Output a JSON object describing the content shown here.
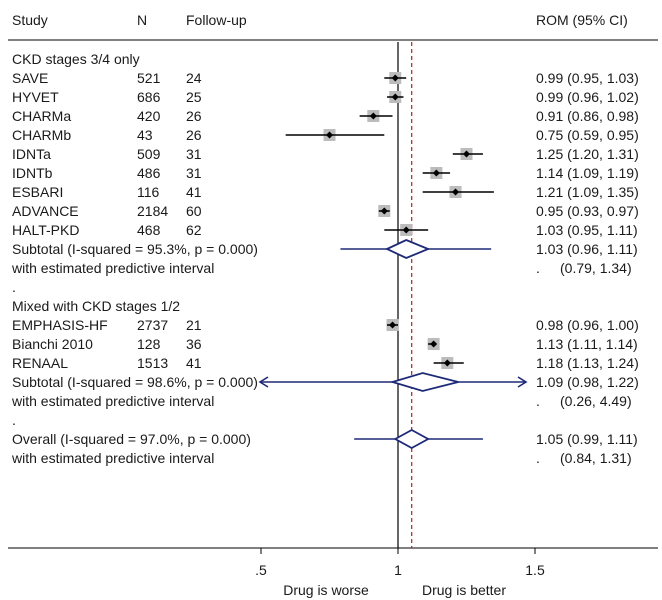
{
  "chart_data": {
    "type": "forest",
    "title": "",
    "header": {
      "study": "Study",
      "n": "N",
      "follow_up": "Follow-up",
      "effect": "ROM (95% CI)"
    },
    "x_axis": {
      "ticks": [
        0.5,
        1,
        1.5
      ],
      "tick_labels": [
        ".5",
        "1",
        "1.5"
      ],
      "xlim": [
        0.0,
        1.9
      ],
      "label_left": "Drug is worse",
      "label_right": "Drug is better"
    },
    "null_line": 1,
    "overall_line": 1.05,
    "colors": {
      "ci_line": "#000000",
      "point": "#000000",
      "box": "#bcbcbc",
      "diamond": "#1e2a78",
      "overall_line": "#b0202a"
    },
    "rows": [
      {
        "kind": "group",
        "label": "CKD stages 3/4 only"
      },
      {
        "kind": "study",
        "label": "SAVE",
        "n": "521",
        "follow": "24",
        "est": 0.99,
        "lo": 0.95,
        "hi": 1.03,
        "ci_text": "0.99 (0.95, 1.03)"
      },
      {
        "kind": "study",
        "label": "HYVET",
        "n": "686",
        "follow": "25",
        "est": 0.99,
        "lo": 0.96,
        "hi": 1.02,
        "ci_text": "0.99 (0.96, 1.02)"
      },
      {
        "kind": "study",
        "label": "CHARMa",
        "n": "420",
        "follow": "26",
        "est": 0.91,
        "lo": 0.86,
        "hi": 0.98,
        "ci_text": "0.91 (0.86, 0.98)"
      },
      {
        "kind": "study",
        "label": "CHARMb",
        "n": "43",
        "follow": "26",
        "est": 0.75,
        "lo": 0.59,
        "hi": 0.95,
        "ci_text": "0.75 (0.59, 0.95)"
      },
      {
        "kind": "study",
        "label": "IDNTa",
        "n": "509",
        "follow": "31",
        "est": 1.25,
        "lo": 1.2,
        "hi": 1.31,
        "ci_text": "1.25 (1.20, 1.31)"
      },
      {
        "kind": "study",
        "label": "IDNTb",
        "n": "486",
        "follow": "31",
        "est": 1.14,
        "lo": 1.09,
        "hi": 1.19,
        "ci_text": "1.14 (1.09, 1.19)"
      },
      {
        "kind": "study",
        "label": "ESBARI",
        "n": "116",
        "follow": "41",
        "est": 1.21,
        "lo": 1.09,
        "hi": 1.35,
        "ci_text": "1.21 (1.09, 1.35)"
      },
      {
        "kind": "study",
        "label": "ADVANCE",
        "n": "2184",
        "follow": "60",
        "est": 0.95,
        "lo": 0.93,
        "hi": 0.97,
        "ci_text": "0.95 (0.93, 0.97)"
      },
      {
        "kind": "study",
        "label": "HALT-PKD",
        "n": "468",
        "follow": "62",
        "est": 1.03,
        "lo": 0.95,
        "hi": 1.11,
        "ci_text": "1.03 (0.95, 1.11)"
      },
      {
        "kind": "subtotal",
        "label": "Subtotal  (I-squared = 95.3%, p = 0.000)",
        "est": 1.03,
        "lo": 0.96,
        "hi": 1.11,
        "pi_lo": 0.79,
        "pi_hi": 1.34,
        "ci_text": "1.03 (0.96, 1.11)"
      },
      {
        "kind": "pi",
        "label": "with estimated predictive interval",
        "dot": ".",
        "ci_text": "(0.79, 1.34)"
      },
      {
        "kind": "sep",
        "label": "."
      },
      {
        "kind": "group",
        "label": "Mixed with CKD stages 1/2"
      },
      {
        "kind": "study",
        "label": "EMPHASIS-HF",
        "n": "2737",
        "follow": "21",
        "est": 0.98,
        "lo": 0.96,
        "hi": 1.0,
        "ci_text": "0.98 (0.96, 1.00)"
      },
      {
        "kind": "study",
        "label": "Bianchi 2010",
        "n": "128",
        "follow": "36",
        "est": 1.13,
        "lo": 1.11,
        "hi": 1.14,
        "ci_text": "1.13 (1.11, 1.14)"
      },
      {
        "kind": "study",
        "label": "RENAAL",
        "n": "1513",
        "follow": "41",
        "est": 1.18,
        "lo": 1.13,
        "hi": 1.24,
        "ci_text": "1.18 (1.13, 1.24)"
      },
      {
        "kind": "subtotal",
        "label": "Subtotal  (I-squared = 98.6%, p = 0.000)",
        "est": 1.09,
        "lo": 0.98,
        "hi": 1.22,
        "pi_lo": 0.26,
        "pi_hi": 4.49,
        "ci_text": "1.09 (0.98, 1.22)"
      },
      {
        "kind": "pi",
        "label": "with estimated predictive interval",
        "dot": ".",
        "ci_text": "(0.26, 4.49)"
      },
      {
        "kind": "sep",
        "label": "."
      },
      {
        "kind": "subtotal",
        "label": "Overall  (I-squared = 97.0%, p = 0.000)",
        "est": 1.05,
        "lo": 0.99,
        "hi": 1.11,
        "pi_lo": 0.84,
        "pi_hi": 1.31,
        "ci_text": "1.05 (0.99, 1.11)"
      },
      {
        "kind": "pi",
        "label": "with estimated predictive interval",
        "dot": ".",
        "ci_text": "(0.84, 1.31)"
      }
    ]
  }
}
